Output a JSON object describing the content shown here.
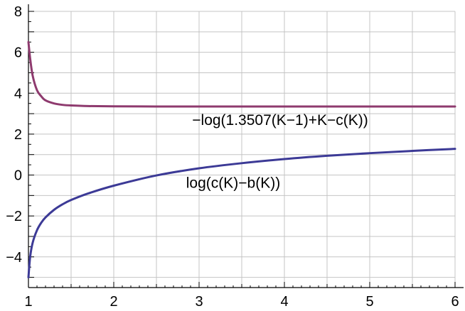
{
  "chart_data": {
    "type": "line",
    "title": "",
    "xlabel": "",
    "ylabel": "",
    "xlim": [
      1,
      6
    ],
    "ylim": [
      -5.5,
      8
    ],
    "grid": true,
    "x_ticks": [
      "1",
      "2",
      "3",
      "4",
      "5",
      "6"
    ],
    "y_ticks": [
      "8",
      "6",
      "4",
      "2",
      "0",
      "−2",
      "−4"
    ],
    "series": [
      {
        "color": "#8e3a6e",
        "x": [
          1.0,
          1.02,
          1.05,
          1.1,
          1.15,
          1.2,
          1.3,
          1.4,
          1.5,
          1.7,
          2.0,
          2.5,
          3.0,
          3.5,
          4.0,
          4.5,
          5.0,
          5.5,
          6.0
        ],
        "y": [
          6.5,
          5.7,
          4.85,
          4.15,
          3.85,
          3.65,
          3.5,
          3.43,
          3.4,
          3.37,
          3.36,
          3.35,
          3.35,
          3.35,
          3.35,
          3.35,
          3.35,
          3.35,
          3.35
        ]
      },
      {
        "color": "#3c3a96",
        "x": [
          1.0,
          1.02,
          1.05,
          1.1,
          1.15,
          1.2,
          1.3,
          1.4,
          1.5,
          1.7,
          2.0,
          2.5,
          3.0,
          3.5,
          4.0,
          4.5,
          5.0,
          5.5,
          6.0
        ],
        "y": [
          -5.0,
          -4.0,
          -3.3,
          -2.7,
          -2.33,
          -2.07,
          -1.7,
          -1.43,
          -1.22,
          -0.9,
          -0.52,
          -0.02,
          0.33,
          0.58,
          0.78,
          0.94,
          1.07,
          1.18,
          1.28
        ]
      }
    ],
    "annotations": [
      {
        "text": "−log(1.3507(K−1)+K−c(K))",
        "x": 3.95,
        "y": 2.45
      },
      {
        "text": "log(c(K)−b(K))",
        "x": 3.4,
        "y": -0.62
      }
    ]
  }
}
